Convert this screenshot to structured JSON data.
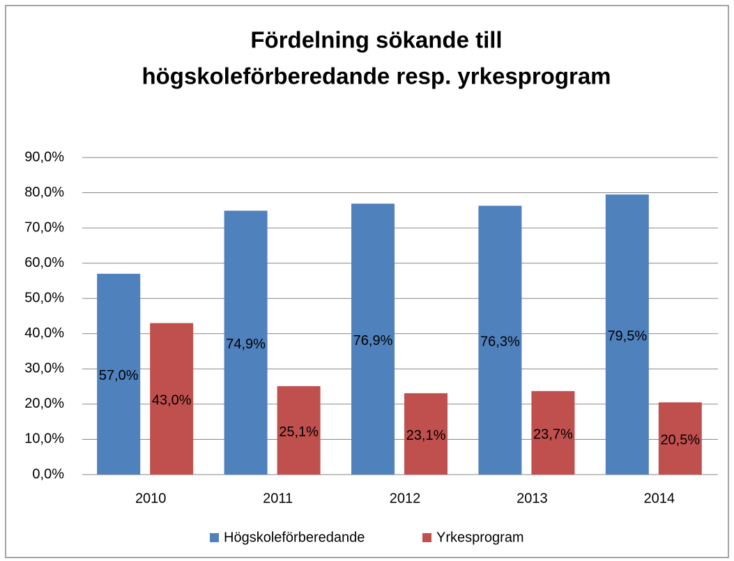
{
  "chart_data": {
    "type": "bar",
    "title": [
      "Fördelning sökande till",
      "högskoleförberedande resp. yrkesprogram"
    ],
    "categories": [
      "2010",
      "2011",
      "2012",
      "2013",
      "2014"
    ],
    "series": [
      {
        "name": "Högskoleförberedande",
        "color": "#4f81bd",
        "values": [
          57.0,
          74.9,
          76.9,
          76.3,
          79.5
        ],
        "value_labels": [
          "57,0%",
          "74,9%",
          "76,9%",
          "76,3%",
          "79,5%"
        ]
      },
      {
        "name": "Yrkesprogram",
        "color": "#c0504d",
        "values": [
          43.0,
          25.1,
          23.1,
          23.7,
          20.5
        ],
        "value_labels": [
          "43,0%",
          "25,1%",
          "23,1%",
          "23,7%",
          "20,5%"
        ]
      }
    ],
    "ylim": [
      0,
      90
    ],
    "yticks": [
      {
        "value": 0,
        "label": "0,0%"
      },
      {
        "value": 10,
        "label": "10,0%"
      },
      {
        "value": 20,
        "label": "20,0%"
      },
      {
        "value": 30,
        "label": "30,0%"
      },
      {
        "value": 40,
        "label": "40,0%"
      },
      {
        "value": 50,
        "label": "50,0%"
      },
      {
        "value": 60,
        "label": "60,0%"
      },
      {
        "value": 70,
        "label": "70,0%"
      },
      {
        "value": 80,
        "label": "80,0%"
      },
      {
        "value": 90,
        "label": "90,0%"
      }
    ],
    "grid": true,
    "legend": "bottom"
  }
}
